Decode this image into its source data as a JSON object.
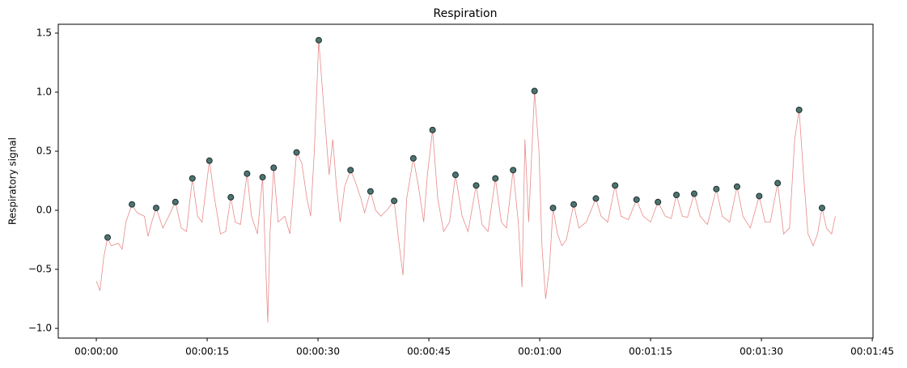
{
  "chart_data": {
    "type": "line",
    "title": "Respiration",
    "y_label": "Respiratory signal",
    "xlim": [
      -5.15,
      105.1
    ],
    "ylim": [
      -1.082,
      1.575
    ],
    "xticks": [
      {
        "value": 0,
        "label": "00:00:00"
      },
      {
        "value": 15,
        "label": "00:00:15"
      },
      {
        "value": 30,
        "label": "00:00:30"
      },
      {
        "value": 45,
        "label": "00:00:45"
      },
      {
        "value": 60,
        "label": "00:01:00"
      },
      {
        "value": 75,
        "label": "00:01:15"
      },
      {
        "value": 90,
        "label": "00:01:30"
      },
      {
        "value": 105,
        "label": "00:01:45"
      }
    ],
    "yticks": [
      {
        "value": -1,
        "label": "−1.0"
      },
      {
        "value": -0.5,
        "label": "−0.5"
      },
      {
        "value": 0,
        "label": "0.0"
      },
      0.5,
      {
        "value": 1,
        "label": "1.0"
      },
      1.5
    ],
    "grid": false,
    "series": [
      {
        "type": "line",
        "color": "#e88a8a",
        "x": [
          0,
          0.5,
          1.0,
          1.53,
          2,
          3,
          3.5,
          4,
          4.82,
          5.5,
          6.5,
          7,
          7.5,
          8.1,
          9,
          9.8,
          10.7,
          11.5,
          12.2,
          13.0,
          13.7,
          14.3,
          15.3,
          16,
          16.8,
          17.5,
          18.2,
          18.8,
          19.5,
          20.4,
          21,
          21.8,
          22.5,
          23.2,
          23.5,
          24.0,
          24.6,
          25.5,
          26.2,
          27.1,
          27.8,
          28.5,
          29,
          29.5,
          30.1,
          30.5,
          31,
          31.5,
          32,
          32.5,
          33,
          33.6,
          34.4,
          35,
          35.8,
          36.3,
          37.1,
          37.8,
          38.5,
          39.3,
          40.3,
          41,
          41.5,
          42,
          42.9,
          43.6,
          44.3,
          44.8,
          45.5,
          46.2,
          47,
          47.8,
          48.6,
          49.5,
          50.3,
          51.4,
          52.2,
          53,
          54.0,
          54.8,
          55.5,
          56.4,
          57.1,
          57.6,
          58.0,
          58.5,
          59.3,
          59.9,
          60.3,
          60.8,
          61.3,
          61.8,
          62.4,
          63,
          63.6,
          64.6,
          65.3,
          66.3,
          67.6,
          68.3,
          69.2,
          70.2,
          71,
          72,
          73.1,
          74,
          75,
          76.0,
          77,
          77.8,
          78.5,
          79.3,
          80,
          80.9,
          81.7,
          82.7,
          83.9,
          84.7,
          85.7,
          86.7,
          87.5,
          88.5,
          89.7,
          90.5,
          91.2,
          92.2,
          93,
          93.8,
          94.5,
          95.1,
          95.7,
          96.3,
          97,
          97.6,
          98.2,
          98.8,
          99.5,
          100
        ],
        "values": [
          -0.6,
          -0.68,
          -0.4,
          -0.23,
          -0.3,
          -0.28,
          -0.33,
          -0.1,
          0.05,
          -0.02,
          -0.05,
          -0.22,
          -0.1,
          0.02,
          -0.15,
          -0.05,
          0.07,
          -0.15,
          -0.18,
          0.27,
          -0.05,
          -0.1,
          0.42,
          0.1,
          -0.2,
          -0.18,
          0.11,
          -0.1,
          -0.12,
          0.31,
          -0.05,
          -0.2,
          0.28,
          -0.95,
          -0.2,
          0.36,
          -0.1,
          -0.05,
          -0.2,
          0.49,
          0.4,
          0.1,
          -0.05,
          0.5,
          1.44,
          1.1,
          0.7,
          0.3,
          0.6,
          0.2,
          -0.1,
          0.2,
          0.34,
          0.25,
          0.1,
          -0.02,
          0.16,
          0.0,
          -0.05,
          0.0,
          0.08,
          -0.3,
          -0.55,
          0.1,
          0.44,
          0.2,
          -0.1,
          0.3,
          0.68,
          0.1,
          -0.18,
          -0.1,
          0.3,
          -0.05,
          -0.18,
          0.21,
          -0.12,
          -0.18,
          0.27,
          -0.1,
          -0.15,
          0.34,
          -0.1,
          -0.65,
          0.6,
          -0.1,
          1.01,
          0.5,
          -0.3,
          -0.75,
          -0.5,
          0.02,
          -0.2,
          -0.3,
          -0.25,
          0.05,
          -0.15,
          -0.1,
          0.1,
          -0.05,
          -0.1,
          0.21,
          -0.05,
          -0.08,
          0.09,
          -0.05,
          -0.1,
          0.07,
          -0.05,
          -0.07,
          0.13,
          -0.05,
          -0.06,
          0.14,
          -0.05,
          -0.12,
          0.18,
          -0.05,
          -0.1,
          0.2,
          -0.05,
          -0.15,
          0.12,
          -0.1,
          -0.1,
          0.23,
          -0.2,
          -0.15,
          0.6,
          0.85,
          0.3,
          -0.2,
          -0.3,
          -0.2,
          0.02,
          -0.15,
          -0.2,
          -0.05
        ]
      },
      {
        "type": "scatter",
        "color": "#4d7471",
        "x": [
          1.53,
          4.82,
          8.1,
          10.7,
          13.0,
          15.3,
          18.2,
          20.4,
          22.5,
          24.0,
          27.1,
          30.1,
          34.4,
          37.1,
          40.3,
          42.9,
          45.5,
          48.6,
          51.4,
          54.0,
          56.4,
          59.3,
          61.8,
          64.6,
          67.6,
          70.2,
          73.1,
          76.0,
          78.5,
          80.9,
          83.9,
          86.7,
          89.7,
          92.2,
          95.1,
          98.2
        ],
        "values": [
          -0.23,
          0.05,
          0.02,
          0.07,
          0.27,
          0.42,
          0.11,
          0.31,
          0.28,
          0.36,
          0.49,
          1.44,
          0.34,
          0.16,
          0.08,
          0.44,
          0.68,
          0.3,
          0.21,
          0.27,
          0.34,
          1.01,
          0.02,
          0.05,
          0.1,
          0.21,
          0.09,
          0.07,
          0.13,
          0.14,
          0.18,
          0.2,
          0.12,
          0.23,
          0.85,
          0.02
        ]
      }
    ]
  }
}
